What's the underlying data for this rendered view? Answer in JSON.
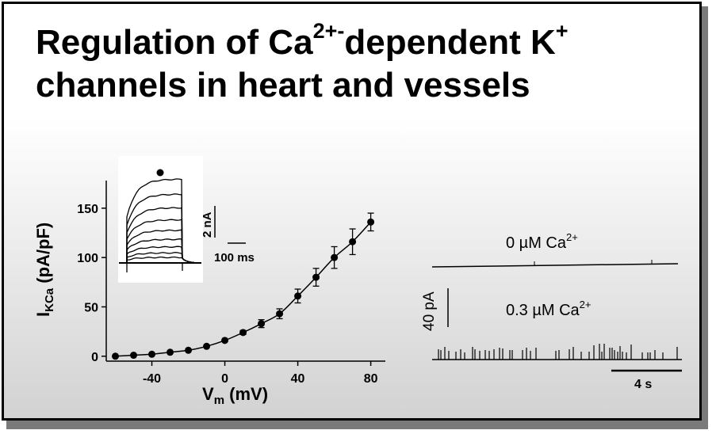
{
  "title": {
    "line1_a": "Regulation of Ca",
    "line1_sup1": "2+-",
    "line1_b": "dependent K",
    "line1_sup2": "+",
    "line2": "channels in heart and vessels"
  },
  "chart_data": [
    {
      "type": "scatter",
      "xlabel_main": "V",
      "xlabel_sub": "m",
      "xlabel_unit": " (mV)",
      "ylabel_main": "I",
      "ylabel_sub": "KCa",
      "ylabel_unit": " (pA/pF)",
      "xlim": [
        -65,
        88
      ],
      "ylim": [
        -5,
        178
      ],
      "xticks": [
        -40,
        0,
        40,
        80
      ],
      "yticks": [
        0,
        50,
        100,
        150
      ],
      "x": [
        -60,
        -50,
        -40,
        -30,
        -20,
        -10,
        0,
        10,
        20,
        30,
        40,
        50,
        60,
        70,
        80
      ],
      "y": [
        0,
        1,
        2,
        4,
        6,
        10,
        16,
        24,
        33,
        43,
        61,
        80,
        100,
        116,
        136
      ],
      "err": [
        0,
        0,
        0,
        0,
        0,
        0,
        0,
        2,
        4,
        5,
        7,
        9,
        11,
        13,
        9
      ],
      "fit": "line through points"
    },
    {
      "type": "line",
      "inset": "current traces",
      "n_traces": 9,
      "scale_current": "2 nA",
      "scale_time": "100 ms"
    },
    {
      "type": "line",
      "traces": [
        {
          "name": "0 µM Ca",
          "sup": "2+"
        },
        {
          "name": "0.3 µM Ca",
          "sup": "2+"
        }
      ],
      "scale_current": "40 pA",
      "scale_time": "4 s"
    }
  ],
  "colors": {
    "ink": "#000000",
    "border": "#000000",
    "shadow": "#7a7a7a"
  }
}
